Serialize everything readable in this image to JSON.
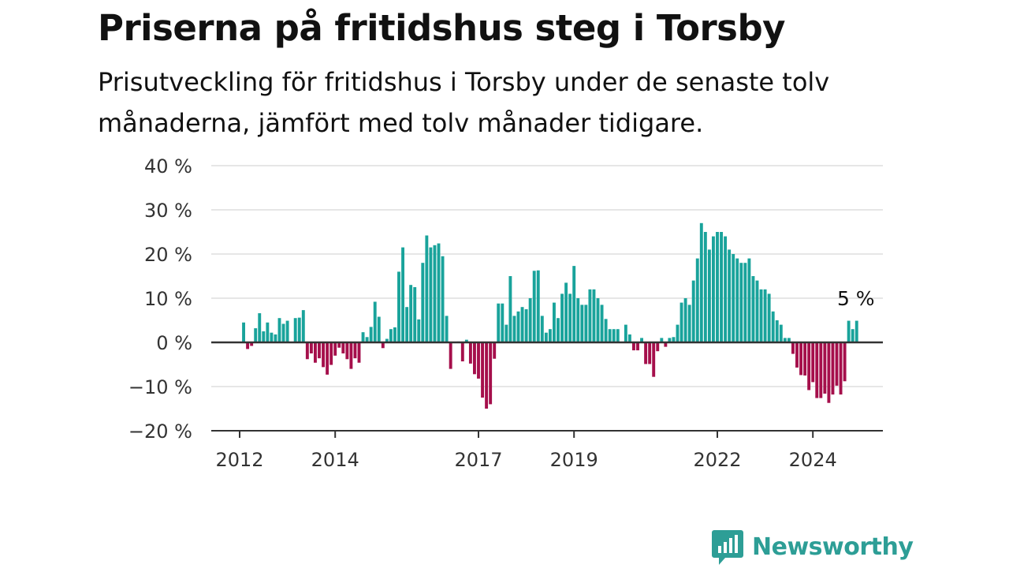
{
  "title": "Priserna på fritidshus steg i Torsby",
  "subtitle": "Prisutveckling för fritidshus i Torsby under de senaste tolv månaderna, jämfört med tolv månader tidigare.",
  "brand": {
    "name": "Newsworthy",
    "icon": "newsworthy-logo-icon",
    "color": "#2d9e96"
  },
  "chart_data": {
    "type": "bar",
    "title": "",
    "xlabel": "",
    "ylabel": "",
    "ylim": [
      -20,
      40
    ],
    "y_ticks": [
      {
        "value": 40,
        "label": "40 %"
      },
      {
        "value": 30,
        "label": "30 %"
      },
      {
        "value": 20,
        "label": "20 %"
      },
      {
        "value": 10,
        "label": "10 %"
      },
      {
        "value": 0,
        "label": "0 %"
      },
      {
        "value": -10,
        "label": "−10 %"
      },
      {
        "value": -20,
        "label": "−20 %"
      }
    ],
    "x_ticks": [
      {
        "value": 2012,
        "label": "2012"
      },
      {
        "value": 2014,
        "label": "2014"
      },
      {
        "value": 2017,
        "label": "2017"
      },
      {
        "value": 2019,
        "label": "2019"
      },
      {
        "value": 2022,
        "label": "2022"
      },
      {
        "value": 2024,
        "label": "2024"
      }
    ],
    "x_start": 2012.0,
    "frequency": "monthly",
    "grid": true,
    "colors": {
      "positive": "#19a39b",
      "negative": "#a50f4b",
      "grid": "#dddddd",
      "axis": "#333333"
    },
    "last_value_label": "5 %",
    "values": [
      0,
      4.5,
      -1.5,
      -0.8,
      3.2,
      6.6,
      2.5,
      4.5,
      2.2,
      1.8,
      5.5,
      4.2,
      4.9,
      0,
      5.5,
      5.6,
      7.3,
      -3.8,
      -2.5,
      -4.6,
      -3.6,
      -5.6,
      -7.3,
      -5.1,
      -3.0,
      -1.2,
      -2.5,
      -3.8,
      -6.0,
      -3.6,
      -4.6,
      2.3,
      1.2,
      3.5,
      9.2,
      5.8,
      -1.3,
      0.8,
      3.0,
      3.4,
      16.0,
      21.5,
      8.0,
      13.0,
      12.5,
      5.2,
      18.0,
      24.2,
      21.5,
      22.0,
      22.4,
      19.5,
      6.0,
      -6.0,
      0,
      0.2,
      -4.3,
      0.6,
      -4.8,
      -7.2,
      -8.2,
      -12.5,
      -15.0,
      -14.0,
      -3.7,
      8.8,
      8.8,
      4.0,
      15.0,
      6.0,
      7.0,
      8.0,
      7.5,
      10.0,
      16.2,
      16.3,
      6.0,
      2.2,
      3.0,
      9.0,
      5.5,
      11.0,
      13.5,
      11.0,
      17.3,
      10.0,
      8.5,
      8.5,
      12.0,
      12.0,
      10.0,
      8.5,
      5.3,
      3.0,
      3.0,
      3.0,
      0,
      4.0,
      1.8,
      -1.8,
      -1.8,
      1.0,
      -4.9,
      -4.9,
      -7.8,
      -2.0,
      1.0,
      -1.0,
      1.0,
      1.2,
      4.0,
      9.0,
      10.0,
      8.5,
      14.0,
      19.0,
      27.0,
      25.0,
      21.0,
      24.0,
      25.0,
      25.0,
      24.0,
      21.0,
      20.0,
      19.0,
      18.0,
      18.0,
      19.0,
      15.0,
      14.0,
      12.0,
      12.0,
      11.0,
      7.0,
      5.0,
      4.0,
      1.0,
      1.0,
      -2.6,
      -5.7,
      -7.4,
      -7.5,
      -10.8,
      -9.0,
      -12.6,
      -12.6,
      -11.6,
      -13.7,
      -11.8,
      -9.8,
      -11.8,
      -8.8,
      4.9,
      3.0,
      4.9
    ]
  }
}
